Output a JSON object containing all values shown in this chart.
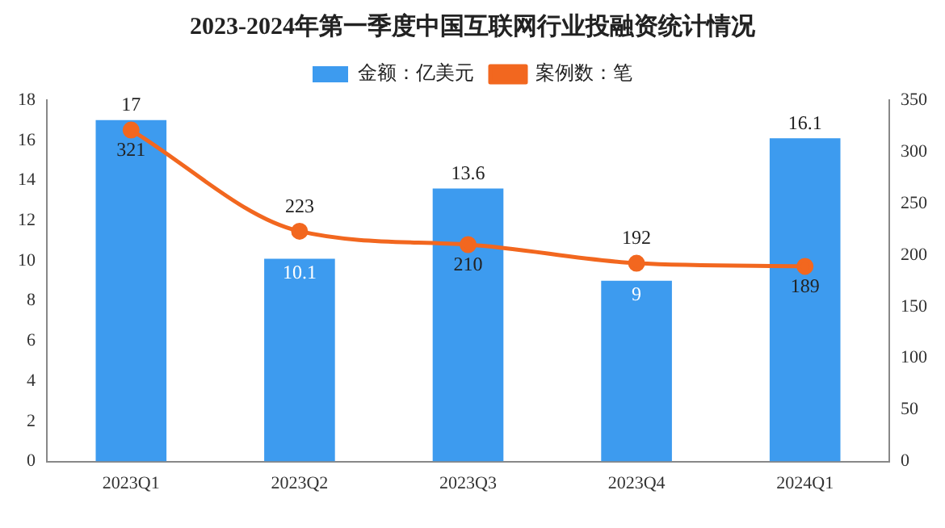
{
  "chart_data": {
    "type": "bar",
    "title": "2023-2024年第一季度中国互联网行业投融资统计情况",
    "categories": [
      "2023Q1",
      "2023Q2",
      "2023Q3",
      "2023Q4",
      "2024Q1"
    ],
    "series": [
      {
        "name": "金额：亿美元",
        "color": "#3d9bef",
        "values": [
          17,
          10.1,
          13.6,
          9,
          16.1
        ]
      },
      {
        "name": "案例数：笔",
        "type": "line",
        "axis": "y2",
        "color": "#f2671f",
        "values": [
          321,
          223,
          210,
          192,
          189
        ]
      }
    ],
    "ylim": [
      0,
      18
    ],
    "yticks": [
      0,
      2,
      4,
      6,
      8,
      10,
      12,
      14,
      16,
      18
    ],
    "y2lim": [
      0,
      350
    ],
    "y2ticks": [
      0,
      50,
      100,
      150,
      200,
      250,
      300,
      350
    ],
    "legend": "top",
    "marker": "circle",
    "data_labels": true
  }
}
